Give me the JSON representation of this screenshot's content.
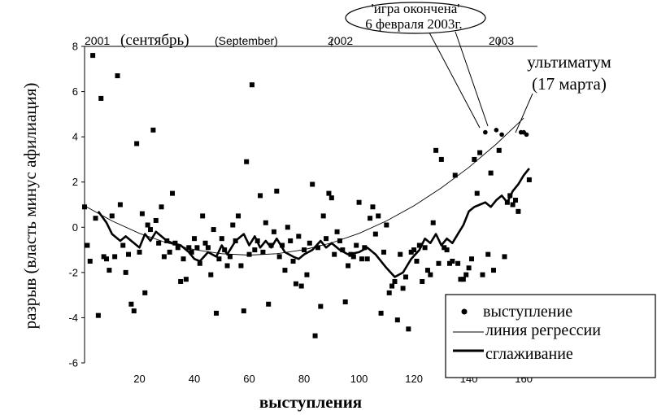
{
  "chart_data": {
    "type": "scatter",
    "title": "",
    "xlabel": "выступления",
    "ylabel": "разрыв (власть минус афилиация)",
    "xlim": [
      0,
      165
    ],
    "ylim": [
      -6,
      8
    ],
    "x_ticks": [
      20,
      40,
      60,
      80,
      100,
      120,
      140,
      160
    ],
    "y_ticks": [
      -6,
      -4,
      -2,
      0,
      2,
      4,
      6,
      8
    ],
    "top_axis": {
      "year_2001": "2001",
      "month_ru": "(сентябрь)",
      "month_en": "(September)",
      "year_2002": "2002",
      "year_2003": "2003",
      "boundaries": [
        90,
        151
      ]
    },
    "annotations": {
      "game_over_line1": "'игра окончена'",
      "game_over_line2": "6 февраля 2003г.",
      "ultimatum_line1": "ультиматум",
      "ultimatum_line2": "(17 марта)"
    },
    "legend": {
      "position": "bottom-right",
      "items": {
        "speech": "выступление",
        "regression": "линия регрессии",
        "smoothing": "сглаживание"
      }
    },
    "series": [
      {
        "name": "выступление",
        "points": [
          [
            0,
            0.9
          ],
          [
            1,
            -0.8
          ],
          [
            2,
            -1.5
          ],
          [
            3,
            7.6
          ],
          [
            4,
            0.4
          ],
          [
            5,
            -3.9
          ],
          [
            6,
            5.7
          ],
          [
            7,
            -1.3
          ],
          [
            8,
            -1.4
          ],
          [
            9,
            -1.9
          ],
          [
            10,
            0.5
          ],
          [
            11,
            -1.3
          ],
          [
            12,
            6.7
          ],
          [
            13,
            1.0
          ],
          [
            14,
            -0.8
          ],
          [
            15,
            -2.0
          ],
          [
            16,
            -1.2
          ],
          [
            17,
            -3.4
          ],
          [
            18,
            -3.7
          ],
          [
            19,
            3.7
          ],
          [
            20,
            -1.1
          ],
          [
            21,
            0.6
          ],
          [
            22,
            -2.9
          ],
          [
            23,
            0.1
          ],
          [
            24,
            -0.1
          ],
          [
            25,
            4.3
          ],
          [
            26,
            0.3
          ],
          [
            27,
            -0.7
          ],
          [
            28,
            0.9
          ],
          [
            29,
            -1.3
          ],
          [
            30,
            -0.6
          ],
          [
            31,
            -1.1
          ],
          [
            32,
            1.5
          ],
          [
            33,
            -0.7
          ],
          [
            34,
            -0.9
          ],
          [
            35,
            -2.4
          ],
          [
            36,
            -1.4
          ],
          [
            37,
            -2.3
          ],
          [
            38,
            -0.9
          ],
          [
            39,
            -1.1
          ],
          [
            40,
            -0.5
          ],
          [
            41,
            -0.9
          ],
          [
            42,
            -1.6
          ],
          [
            43,
            0.5
          ],
          [
            44,
            -0.7
          ],
          [
            45,
            -0.9
          ],
          [
            46,
            -2.1
          ],
          [
            47,
            -0.1
          ],
          [
            48,
            -3.8
          ],
          [
            49,
            -1.4
          ],
          [
            50,
            -0.5
          ],
          [
            51,
            -1.0
          ],
          [
            52,
            -1.7
          ],
          [
            53,
            -1.3
          ],
          [
            54,
            0.1
          ],
          [
            55,
            -0.6
          ],
          [
            56,
            0.5
          ],
          [
            57,
            -1.7
          ],
          [
            58,
            -3.7
          ],
          [
            59,
            2.9
          ],
          [
            60,
            -1.2
          ],
          [
            61,
            6.3
          ],
          [
            62,
            -1.0
          ],
          [
            63,
            -0.6
          ],
          [
            64,
            1.4
          ],
          [
            65,
            -1.1
          ],
          [
            66,
            0.2
          ],
          [
            67,
            -3.4
          ],
          [
            68,
            -0.8
          ],
          [
            69,
            -0.2
          ],
          [
            70,
            1.6
          ],
          [
            71,
            -1.3
          ],
          [
            72,
            -0.8
          ],
          [
            73,
            -1.9
          ],
          [
            74,
            0.0
          ],
          [
            75,
            -0.6
          ],
          [
            76,
            -1.5
          ],
          [
            77,
            -2.5
          ],
          [
            78,
            -0.4
          ],
          [
            79,
            -2.6
          ],
          [
            80,
            -1.0
          ],
          [
            81,
            -2.1
          ],
          [
            82,
            -0.7
          ],
          [
            83,
            1.9
          ],
          [
            84,
            -4.8
          ],
          [
            85,
            -0.9
          ],
          [
            86,
            -3.5
          ],
          [
            87,
            0.5
          ],
          [
            88,
            -0.5
          ],
          [
            89,
            1.5
          ],
          [
            90,
            1.3
          ],
          [
            91,
            -1.2
          ],
          [
            92,
            -0.2
          ],
          [
            93,
            -0.6
          ],
          [
            94,
            -1.0
          ],
          [
            95,
            -3.3
          ],
          [
            96,
            -1.7
          ],
          [
            97,
            -1.2
          ],
          [
            98,
            -1.3
          ],
          [
            99,
            -0.8
          ],
          [
            100,
            1.1
          ],
          [
            101,
            -1.4
          ],
          [
            102,
            -0.9
          ],
          [
            103,
            -1.4
          ],
          [
            104,
            0.4
          ],
          [
            105,
            0.9
          ],
          [
            106,
            -0.3
          ],
          [
            107,
            0.5
          ],
          [
            108,
            -3.8
          ],
          [
            109,
            -1.1
          ],
          [
            110,
            0.1
          ],
          [
            111,
            -2.9
          ],
          [
            112,
            -2.6
          ],
          [
            113,
            -2.4
          ],
          [
            114,
            -4.1
          ],
          [
            115,
            -1.2
          ],
          [
            116,
            -2.7
          ],
          [
            117,
            -2.2
          ],
          [
            118,
            -4.5
          ],
          [
            119,
            -1.1
          ],
          [
            120,
            -1.0
          ],
          [
            121,
            -1.5
          ],
          [
            122,
            -0.8
          ],
          [
            123,
            -2.4
          ],
          [
            124,
            -0.9
          ],
          [
            125,
            -1.9
          ],
          [
            126,
            -2.1
          ],
          [
            127,
            0.2
          ],
          [
            128,
            3.4
          ],
          [
            129,
            -1.6
          ],
          [
            130,
            3.0
          ],
          [
            131,
            -0.9
          ],
          [
            132,
            -1.0
          ],
          [
            133,
            -1.6
          ],
          [
            134,
            -1.5
          ],
          [
            135,
            2.3
          ],
          [
            136,
            -1.6
          ],
          [
            137,
            -2.3
          ],
          [
            138,
            -2.3
          ],
          [
            139,
            -2.1
          ],
          [
            140,
            -1.8
          ],
          [
            141,
            -1.4
          ],
          [
            142,
            3.0
          ],
          [
            143,
            1.5
          ],
          [
            144,
            3.3
          ],
          [
            145,
            -2.1
          ],
          [
            146,
            4.2
          ],
          [
            147,
            -1.2
          ],
          [
            148,
            2.4
          ],
          [
            149,
            -1.9
          ],
          [
            150,
            4.3
          ],
          [
            151,
            3.4
          ],
          [
            152,
            4.1
          ],
          [
            153,
            -1.3
          ],
          [
            154,
            1.1
          ],
          [
            155,
            1.4
          ],
          [
            156,
            1.0
          ],
          [
            157,
            1.2
          ],
          [
            158,
            0.7
          ],
          [
            159,
            4.2
          ],
          [
            160,
            4.2
          ],
          [
            161,
            4.1
          ],
          [
            162,
            2.1
          ]
        ]
      },
      {
        "name": "линия регрессии",
        "curve": "quadratic",
        "points": [
          [
            0,
            0.95
          ],
          [
            10,
            0.28
          ],
          [
            20,
            -0.27
          ],
          [
            30,
            -0.69
          ],
          [
            40,
            -0.99
          ],
          [
            50,
            -1.17
          ],
          [
            60,
            -1.23
          ],
          [
            70,
            -1.17
          ],
          [
            80,
            -0.99
          ],
          [
            90,
            -0.69
          ],
          [
            100,
            -0.27
          ],
          [
            110,
            0.28
          ],
          [
            120,
            0.95
          ],
          [
            130,
            1.74
          ],
          [
            140,
            2.65
          ],
          [
            150,
            3.68
          ],
          [
            160,
            4.83
          ]
        ]
      },
      {
        "name": "сглаживание",
        "points": [
          [
            5,
            0.7
          ],
          [
            8,
            0.2
          ],
          [
            10,
            -0.3
          ],
          [
            13,
            -0.6
          ],
          [
            15,
            -0.4
          ],
          [
            18,
            -0.7
          ],
          [
            20,
            -0.9
          ],
          [
            22,
            -0.3
          ],
          [
            24,
            -0.6
          ],
          [
            26,
            -0.2
          ],
          [
            28,
            -0.4
          ],
          [
            30,
            -0.6
          ],
          [
            32,
            -0.7
          ],
          [
            35,
            -0.8
          ],
          [
            38,
            -1.1
          ],
          [
            40,
            -1.4
          ],
          [
            42,
            -1.5
          ],
          [
            45,
            -1.1
          ],
          [
            48,
            -1.3
          ],
          [
            50,
            -0.8
          ],
          [
            52,
            -1.2
          ],
          [
            55,
            -0.6
          ],
          [
            58,
            -0.3
          ],
          [
            60,
            -0.8
          ],
          [
            62,
            -0.4
          ],
          [
            64,
            -0.9
          ],
          [
            66,
            -0.6
          ],
          [
            68,
            -0.9
          ],
          [
            70,
            -0.5
          ],
          [
            73,
            -1.1
          ],
          [
            76,
            -1.3
          ],
          [
            78,
            -1.4
          ],
          [
            80,
            -1.2
          ],
          [
            83,
            -1.0
          ],
          [
            86,
            -0.6
          ],
          [
            88,
            -0.9
          ],
          [
            90,
            -0.7
          ],
          [
            93,
            -1.0
          ],
          [
            96,
            -1.2
          ],
          [
            100,
            -1.1
          ],
          [
            103,
            -0.9
          ],
          [
            106,
            -1.2
          ],
          [
            110,
            -1.8
          ],
          [
            113,
            -2.2
          ],
          [
            116,
            -2.0
          ],
          [
            119,
            -1.4
          ],
          [
            122,
            -1.0
          ],
          [
            124,
            -0.5
          ],
          [
            126,
            -0.7
          ],
          [
            128,
            -0.3
          ],
          [
            130,
            -0.8
          ],
          [
            132,
            -0.5
          ],
          [
            134,
            -0.7
          ],
          [
            136,
            -0.3
          ],
          [
            138,
            0.1
          ],
          [
            140,
            0.7
          ],
          [
            142,
            0.9
          ],
          [
            144,
            1.0
          ],
          [
            146,
            1.1
          ],
          [
            148,
            0.9
          ],
          [
            150,
            1.2
          ],
          [
            152,
            1.4
          ],
          [
            154,
            1.1
          ],
          [
            156,
            1.6
          ],
          [
            158,
            1.9
          ],
          [
            160,
            2.3
          ],
          [
            162,
            2.6
          ]
        ]
      }
    ]
  }
}
